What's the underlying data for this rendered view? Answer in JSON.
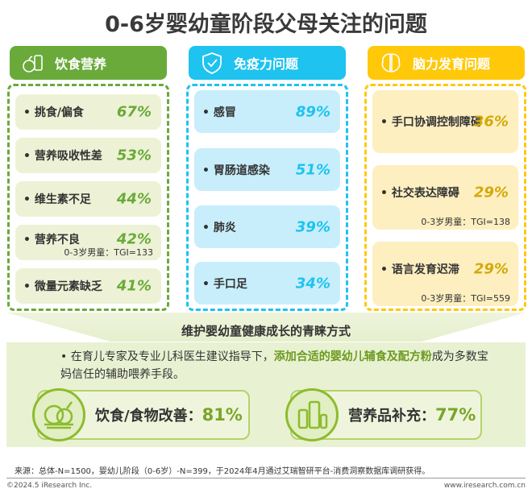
{
  "title": "0-6岁婴幼童阶段父母关注的问题",
  "colors": {
    "green": "#6aaa3a",
    "blue": "#1ec3ef",
    "yellow": "#ffc90a"
  },
  "columns": [
    {
      "name": "饮食营养",
      "icon": "food-icon",
      "items": [
        {
          "label": "• 挑食/偏食",
          "pct": "67%"
        },
        {
          "label": "• 营养吸收性差",
          "pct": "53%"
        },
        {
          "label": "• 维生素不足",
          "pct": "44%"
        },
        {
          "label": "• 营养不良",
          "pct": "42%",
          "tgi": "0-3岁男童：TGI=133"
        },
        {
          "label": "• 微量元素缺乏",
          "pct": "41%"
        }
      ]
    },
    {
      "name": "免疫力问题",
      "icon": "shield-check-icon",
      "items": [
        {
          "label": "• 感冒",
          "pct": "89%"
        },
        {
          "label": "• 胃肠道感染",
          "pct": "51%"
        },
        {
          "label": "• 肺炎",
          "pct": "39%"
        },
        {
          "label": "• 手口足",
          "pct": "34%"
        }
      ]
    },
    {
      "name": "脑力发育问题",
      "icon": "brain-icon",
      "items": [
        {
          "label": "• 手口协调控制障碍",
          "pct": "36%"
        },
        {
          "label": "• 社交表达障碍",
          "pct": "29%",
          "tgi": "0-3岁男童：TGI=138"
        },
        {
          "label": "• 语言发育迟滞",
          "pct": "29%",
          "tgi": "0-3岁男童：TGI=559"
        }
      ]
    }
  ],
  "bottom": {
    "subtitle": "维护婴幼童健康成长的青睐方式",
    "bullet_pre": "在育儿专家及专业儿科医生建议指导下，",
    "bullet_hl": "添加合适的婴幼儿辅食及配方粉",
    "bullet_post": "成为多数宝妈信任的辅助喂养手段。",
    "cards": [
      {
        "label": "饮食/食物改善：",
        "value": "81%",
        "icon": "vegetables-icon"
      },
      {
        "label": "营养品补充：",
        "value": "77%",
        "icon": "supplement-bottles-icon"
      }
    ]
  },
  "footer": {
    "source": "来源：总体-N=1500，婴幼儿阶段（0-6岁）-N=399，于2024年4月通过艾瑞智研平台-消费洞察数据库调研获得。",
    "copyright": "©2024.5 iResearch Inc.",
    "url": "www.iresearch.com.cn"
  }
}
